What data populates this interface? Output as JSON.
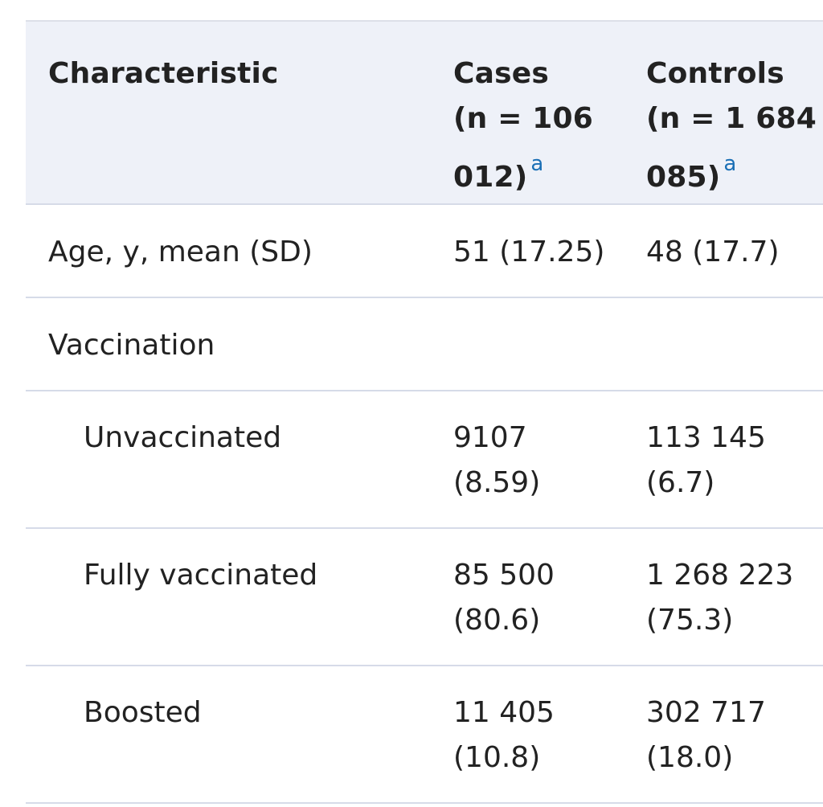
{
  "table": {
    "headers": {
      "characteristic": "Characteristic",
      "cases_line1": "Cases",
      "cases_line2": "(n = 106",
      "cases_line3": "012)",
      "controls_line1": "Controls",
      "controls_line2": "(n = 1 684",
      "controls_line3": "085)",
      "footnote_marker": "a"
    },
    "rows": [
      {
        "label": "Age, y, mean (SD)",
        "cases": [
          "51 (17.25)"
        ],
        "controls": [
          "48 (17.7)"
        ]
      },
      {
        "label": "Vaccination",
        "cases": [],
        "controls": []
      },
      {
        "label": "Unvaccinated",
        "cases": [
          "9107",
          "(8.59)"
        ],
        "controls": [
          "113 145",
          "(6.7)"
        ]
      },
      {
        "label": "Fully vaccinated",
        "cases": [
          "85 500",
          "(80.6)"
        ],
        "controls": [
          "1 268 223",
          "(75.3)"
        ]
      },
      {
        "label": "Boosted",
        "cases": [
          "11 405",
          "(10.8)"
        ],
        "controls": [
          "302 717",
          "(18.0)"
        ]
      }
    ]
  }
}
